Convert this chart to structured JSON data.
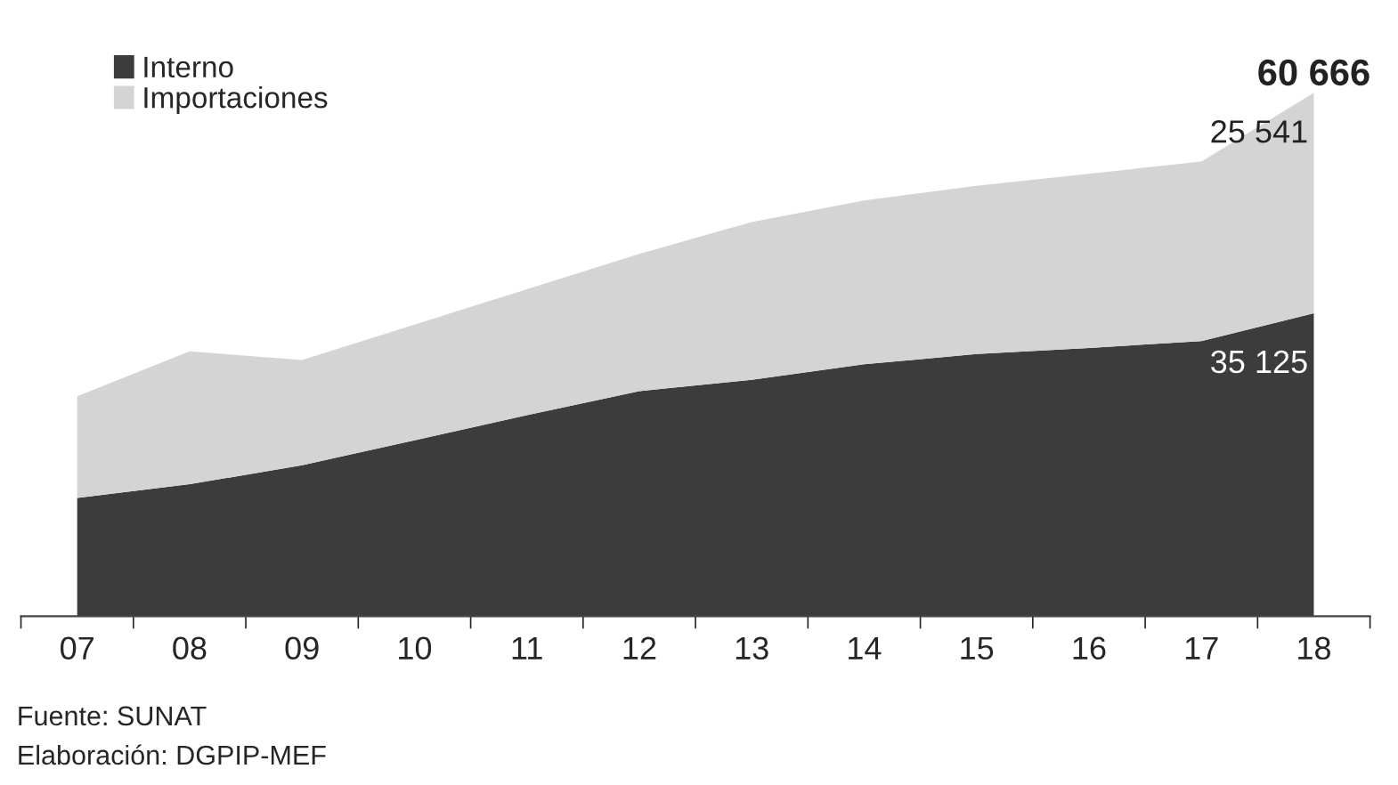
{
  "chart_data": {
    "type": "area",
    "stacked": true,
    "categories": [
      "07",
      "08",
      "09",
      "10",
      "11",
      "12",
      "13",
      "14",
      "15",
      "16",
      "17",
      "18"
    ],
    "series": [
      {
        "name": "Interno",
        "color": "#3c3c3c",
        "values": [
          13700,
          15300,
          17500,
          20400,
          23300,
          26100,
          27400,
          29200,
          30400,
          31100,
          31900,
          35125
        ],
        "value_labels": [
          null,
          null,
          null,
          null,
          null,
          null,
          null,
          null,
          null,
          null,
          null,
          "35 125"
        ]
      },
      {
        "name": "Importaciones",
        "color": "#d4d4d4",
        "values": [
          11800,
          15400,
          12200,
          13400,
          14600,
          15900,
          18300,
          19000,
          19500,
          20200,
          20800,
          25541
        ],
        "value_labels": [
          null,
          null,
          null,
          null,
          null,
          null,
          null,
          null,
          null,
          null,
          null,
          "25 541"
        ]
      }
    ],
    "totals": [
      null,
      null,
      null,
      null,
      null,
      null,
      null,
      null,
      null,
      null,
      null,
      "60 666"
    ],
    "legend": "top left",
    "grid": false,
    "annotations": [
      "Fuente: SUNAT",
      "Elaboración: DGPIP-MEF"
    ]
  }
}
